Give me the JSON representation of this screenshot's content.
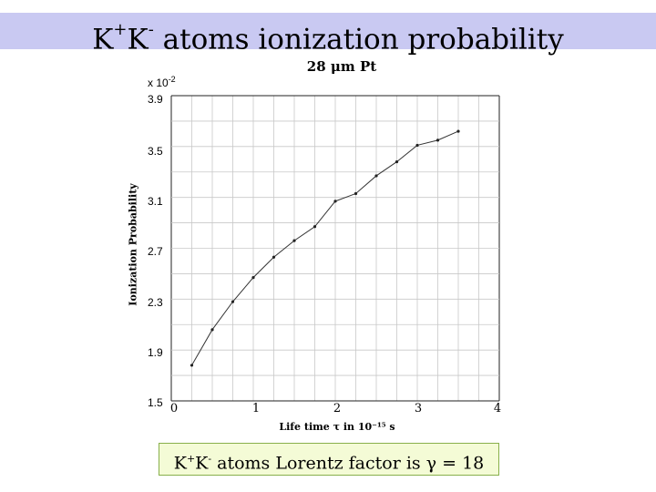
{
  "header": {
    "title_k1": "K",
    "title_sup1": "+",
    "title_k2": "K",
    "title_sup2": "-",
    "title_rest": " atoms ionization probability"
  },
  "footer": {
    "k1": "K",
    "sup1": "+",
    "k2": "K",
    "sup2": "-",
    "rest": " atoms Lorentz factor is γ = 18"
  },
  "chart_data": {
    "type": "line",
    "title": "28 μm Pt",
    "xlabel": "Life time τ in 10⁻¹⁵ s",
    "ylabel": "Ionization Probability",
    "y_multiplier_base": "x 10",
    "y_multiplier_exp": "-2",
    "xlim": [
      0,
      4
    ],
    "ylim": [
      1.5,
      3.9
    ],
    "x_ticks": [
      "0",
      "1",
      "2",
      "3",
      "4"
    ],
    "y_ticks": [
      "1.5",
      "1.9",
      "2.3",
      "2.7",
      "3.1",
      "3.5",
      "3.9"
    ],
    "grid": true,
    "series": [
      {
        "x": [
          0.25,
          0.5,
          0.75,
          1.0,
          1.25,
          1.5,
          1.75,
          2.0,
          2.25,
          2.5,
          2.75,
          3.0,
          3.25,
          3.5
        ],
        "y": [
          1.78,
          2.06,
          2.28,
          2.47,
          2.63,
          2.76,
          2.87,
          3.07,
          3.13,
          3.27,
          3.38,
          3.51,
          3.55,
          3.62
        ]
      }
    ]
  }
}
